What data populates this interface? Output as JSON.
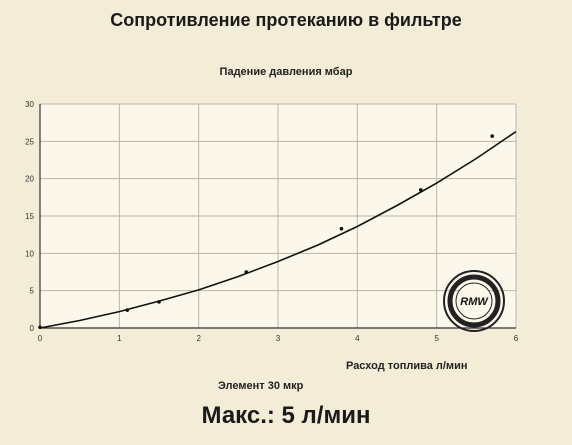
{
  "title": "Сопротивление протеканию в фильтре",
  "subtitle": "Падение давления мбар",
  "x_axis_label": "Расход топлива л/мин",
  "element_label": "Элемент 30 мкр",
  "max_label": "Макс.: 5 л/мин",
  "stamp_text": "RMW",
  "colors": {
    "background": "#f3ecd6",
    "plot_bg": "#fbf7ea",
    "grid": "#bdb6a3",
    "curve": "#111111"
  },
  "chart_data": {
    "type": "line",
    "title": "Сопротивление протеканию в фильтре",
    "ylabel": "Падение давления мбар",
    "xlabel": "Расход топлива л/мин",
    "xlim": [
      0,
      6
    ],
    "ylim": [
      0,
      30
    ],
    "x_ticks": [
      0,
      1,
      2,
      3,
      4,
      5,
      6
    ],
    "y_ticks": [
      0,
      5,
      10,
      15,
      20,
      25,
      30
    ],
    "grid": true,
    "series": [
      {
        "values_x": [
          0,
          0.5,
          1,
          1.5,
          2,
          2.5,
          3,
          3.5,
          4,
          4.5,
          5,
          5.5,
          6
        ],
        "values_y": [
          0,
          1,
          2.2,
          3.6,
          5.1,
          6.9,
          8.9,
          11.1,
          13.6,
          16.4,
          19.4,
          22.7,
          26.3
        ]
      }
    ],
    "points": [
      {
        "x": 0,
        "y": 0.1
      },
      {
        "x": 1.1,
        "y": 2.4
      },
      {
        "x": 1.5,
        "y": 3.5
      },
      {
        "x": 2.6,
        "y": 7.5
      },
      {
        "x": 3.8,
        "y": 13.3
      },
      {
        "x": 4.8,
        "y": 18.5
      },
      {
        "x": 5.7,
        "y": 25.7
      }
    ]
  }
}
